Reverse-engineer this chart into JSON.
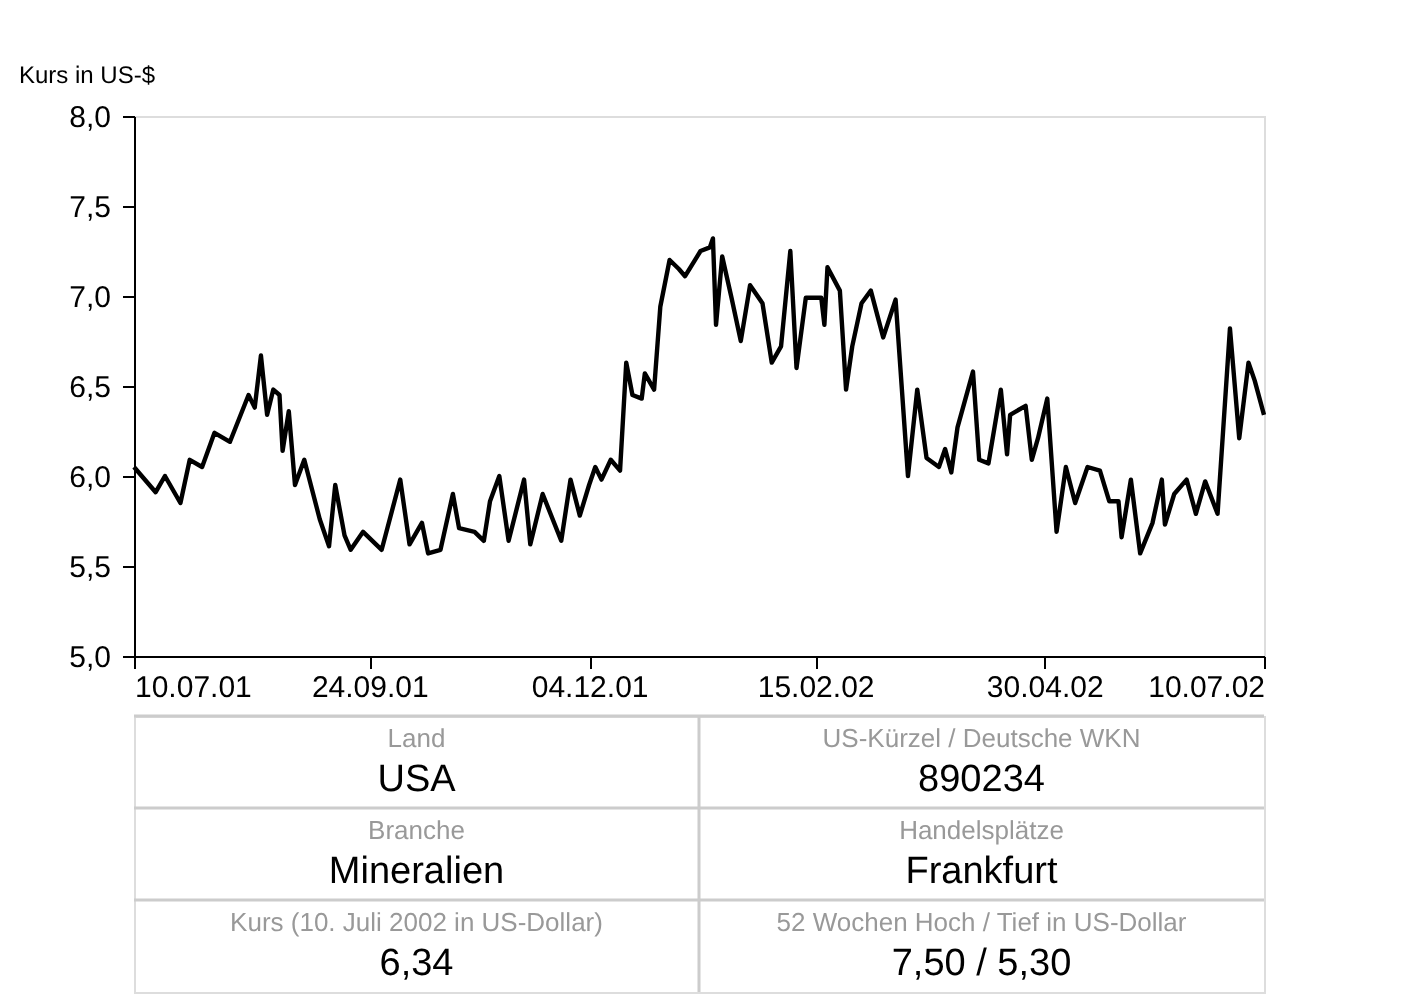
{
  "chart_data": {
    "type": "line",
    "ylabel": "Kurs in US-$",
    "x": [
      "2001-07-10",
      "2001-07-17",
      "2001-07-20",
      "2001-07-25",
      "2001-07-28",
      "2001-08-01",
      "2001-08-05",
      "2001-08-10",
      "2001-08-16",
      "2001-08-18",
      "2001-08-20",
      "2001-08-22",
      "2001-08-24",
      "2001-08-26",
      "2001-08-27",
      "2001-08-29",
      "2001-08-31",
      "2001-09-03",
      "2001-09-08",
      "2001-09-11",
      "2001-09-13",
      "2001-09-16",
      "2001-09-18",
      "2001-09-22",
      "2001-09-28",
      "2001-10-04",
      "2001-10-07",
      "2001-10-11",
      "2001-10-13",
      "2001-10-17",
      "2001-10-21",
      "2001-10-23",
      "2001-10-28",
      "2001-10-31",
      "2001-11-02",
      "2001-11-05",
      "2001-11-08",
      "2001-11-13",
      "2001-11-15",
      "2001-11-19",
      "2001-11-25",
      "2001-11-28",
      "2001-12-01",
      "2001-12-04",
      "2001-12-06",
      "2001-12-08",
      "2001-12-11",
      "2001-12-14",
      "2001-12-16",
      "2001-12-18",
      "2001-12-21",
      "2001-12-22",
      "2001-12-25",
      "2001-12-27",
      "2001-12-30",
      "2002-01-02",
      "2002-01-04",
      "2002-01-09",
      "2002-01-12",
      "2002-01-13",
      "2002-01-14",
      "2002-01-16",
      "2002-01-19",
      "2002-01-22",
      "2002-01-25",
      "2002-01-29",
      "2002-02-01",
      "2002-02-04",
      "2002-02-07",
      "2002-02-09",
      "2002-02-12",
      "2002-02-17",
      "2002-02-18",
      "2002-02-19",
      "2002-02-23",
      "2002-02-25",
      "2002-02-27",
      "2002-03-02",
      "2002-03-05",
      "2002-03-09",
      "2002-03-13",
      "2002-03-17",
      "2002-03-20",
      "2002-03-23",
      "2002-03-27",
      "2002-03-29",
      "2002-03-31",
      "2002-04-02",
      "2002-04-07",
      "2002-04-09",
      "2002-04-12",
      "2002-04-16",
      "2002-04-18",
      "2002-04-19",
      "2002-04-24",
      "2002-04-26",
      "2002-04-28",
      "2002-05-01",
      "2002-05-04",
      "2002-05-07",
      "2002-05-10",
      "2002-05-14",
      "2002-05-18",
      "2002-05-21",
      "2002-05-24",
      "2002-05-25",
      "2002-05-28",
      "2002-05-31",
      "2002-06-04",
      "2002-06-07",
      "2002-06-08",
      "2002-06-11",
      "2002-06-15",
      "2002-06-18",
      "2002-06-21",
      "2002-06-25",
      "2002-06-29",
      "2002-07-02",
      "2002-07-05",
      "2002-07-07",
      "2002-07-10"
    ],
    "series": [
      {
        "color": "#000000",
        "values": [
          6.05,
          5.91,
          6.0,
          5.85,
          6.09,
          6.05,
          6.24,
          6.19,
          6.45,
          6.38,
          6.67,
          6.34,
          6.48,
          6.45,
          6.14,
          6.36,
          5.95,
          6.09,
          5.76,
          5.61,
          5.95,
          5.67,
          5.59,
          5.69,
          5.59,
          5.98,
          5.62,
          5.74,
          5.57,
          5.59,
          5.9,
          5.71,
          5.69,
          5.64,
          5.86,
          6.0,
          5.64,
          5.98,
          5.62,
          5.9,
          5.64,
          5.98,
          5.78,
          5.95,
          6.05,
          5.98,
          6.09,
          6.03,
          6.63,
          6.45,
          6.43,
          6.57,
          6.48,
          6.94,
          7.2,
          7.15,
          7.11,
          7.25,
          7.27,
          7.32,
          6.84,
          7.22,
          6.99,
          6.75,
          7.06,
          6.96,
          6.63,
          6.72,
          7.25,
          6.6,
          6.99,
          6.99,
          6.84,
          7.16,
          7.03,
          6.48,
          6.72,
          6.96,
          7.03,
          6.77,
          6.98,
          6.0,
          6.48,
          6.1,
          6.05,
          6.15,
          6.02,
          6.27,
          6.58,
          6.09,
          6.07,
          6.48,
          6.12,
          6.34,
          6.39,
          6.09,
          6.21,
          6.43,
          5.69,
          6.05,
          5.85,
          6.05,
          6.03,
          5.86,
          5.86,
          5.66,
          5.98,
          5.57,
          5.74,
          5.98,
          5.73,
          5.9,
          5.98,
          5.79,
          5.97,
          5.79,
          6.82,
          6.21,
          6.63,
          6.53,
          6.34
        ]
      }
    ],
    "xlim": [
      "2001-07-10",
      "2002-07-10"
    ],
    "xticks": [
      {
        "value": "2001-07-10",
        "label": "10.07.01"
      },
      {
        "value": "2001-09-24",
        "label": "24.09.01"
      },
      {
        "value": "2001-12-04",
        "label": "04.12.01"
      },
      {
        "value": "2002-02-15",
        "label": "15.02.02"
      },
      {
        "value": "2002-04-30",
        "label": "30.04.02"
      },
      {
        "value": "2002-07-10",
        "label": "10.07.02"
      }
    ],
    "ylim": [
      5.0,
      8.0
    ],
    "yticks": [
      {
        "value": 5.0,
        "label": "5,0"
      },
      {
        "value": 5.5,
        "label": "5,5"
      },
      {
        "value": 6.0,
        "label": "6,0"
      },
      {
        "value": 6.5,
        "label": "6,5"
      },
      {
        "value": 7.0,
        "label": "7,0"
      },
      {
        "value": 7.5,
        "label": "7,5"
      },
      {
        "value": 8.0,
        "label": "8,0"
      }
    ],
    "grid": false,
    "marker": "none",
    "line_style": "solid",
    "annotations": [
      "Land",
      "USA",
      "US-Kürzel / Deutsche WKN",
      "890234",
      "Branche",
      "Mineralien",
      "Handelsplätze",
      "Frankfurt",
      "Kurs (10. Juli 2002 in US-Dollar)",
      "6,34",
      "52 Wochen Hoch / Tief in US-Dollar",
      "7,50 / 5,30"
    ]
  }
}
